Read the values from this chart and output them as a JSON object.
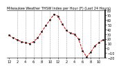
{
  "title": "Milwaukee Weather THSW Index per Hour (F) (Last 24 Hours)",
  "hours": [
    0,
    1,
    2,
    3,
    4,
    5,
    6,
    7,
    8,
    9,
    10,
    11,
    12,
    13,
    14,
    15,
    16,
    17,
    18,
    19,
    20,
    21,
    22,
    23
  ],
  "values": [
    28,
    22,
    18,
    14,
    12,
    10,
    14,
    22,
    35,
    48,
    60,
    72,
    68,
    52,
    38,
    32,
    30,
    20,
    -5,
    -18,
    -8,
    5,
    12,
    18
  ],
  "line_color": "#cc0000",
  "marker_color": "#000000",
  "bg_color": "#ffffff",
  "grid_color": "#999999",
  "ylim": [
    -20,
    80
  ],
  "xlim": [
    -0.5,
    23.5
  ],
  "tick_label_fontsize": 3.5,
  "title_fontsize": 3.5,
  "ytick_values": [
    -20,
    -10,
    0,
    10,
    20,
    30,
    40,
    50,
    60,
    70,
    80
  ],
  "xtick_positions": [
    0,
    2,
    4,
    6,
    8,
    10,
    12,
    14,
    16,
    18,
    20,
    22
  ],
  "xtick_labels": [
    "12",
    "2",
    "4",
    "6",
    "8",
    "10",
    "12",
    "2",
    "4",
    "6",
    "8",
    "10"
  ],
  "vgrid_positions": [
    2,
    4,
    6,
    8,
    10,
    12,
    14,
    16,
    18,
    20,
    22
  ]
}
